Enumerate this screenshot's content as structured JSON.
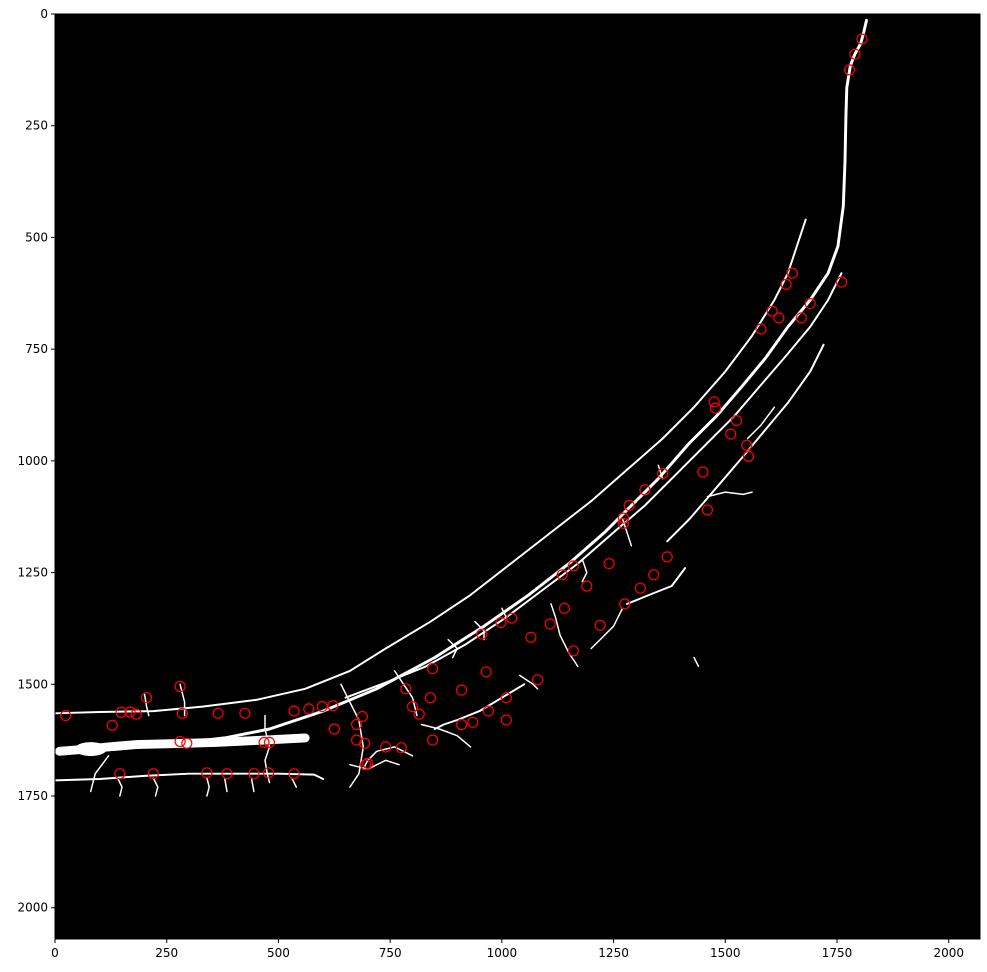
{
  "chart_data": {
    "type": "scatter",
    "title": "",
    "xlabel": "",
    "ylabel": "",
    "xlim": [
      0,
      2070
    ],
    "ylim": [
      2070,
      0
    ],
    "y_inverted": true,
    "grid": false,
    "background_color": "#000000",
    "mask_color": "#ffffff",
    "marker": "circle-outline",
    "marker_color": "#ff0000",
    "x_ticks": [
      0,
      250,
      500,
      750,
      1000,
      1250,
      1500,
      1750,
      2000
    ],
    "y_ticks": [
      0,
      250,
      500,
      750,
      1000,
      1250,
      1500,
      1750,
      2000
    ],
    "mask_strokes": [
      {
        "w": 3,
        "pts": [
          [
            1816,
            14
          ],
          [
            1810,
            40
          ],
          [
            1803,
            66
          ],
          [
            1790,
            90
          ],
          [
            1780,
            115
          ],
          [
            1772,
            165
          ],
          [
            1770,
            230
          ],
          [
            1768,
            330
          ],
          [
            1764,
            430
          ],
          [
            1752,
            520
          ],
          [
            1730,
            580
          ],
          [
            1690,
            640
          ],
          [
            1640,
            700
          ],
          [
            1590,
            770
          ],
          [
            1540,
            830
          ],
          [
            1480,
            900
          ],
          [
            1420,
            960
          ],
          [
            1350,
            1040
          ],
          [
            1290,
            1100
          ],
          [
            1230,
            1160
          ],
          [
            1150,
            1230
          ],
          [
            1060,
            1300
          ],
          [
            960,
            1370
          ],
          [
            850,
            1440
          ],
          [
            720,
            1510
          ],
          [
            600,
            1560
          ],
          [
            480,
            1600
          ],
          [
            380,
            1620
          ],
          [
            250,
            1635
          ],
          [
            140,
            1645
          ],
          [
            60,
            1650
          ],
          [
            0,
            1650
          ]
        ]
      },
      {
        "w": 2,
        "pts": [
          [
            1680,
            460
          ],
          [
            1660,
            520
          ],
          [
            1640,
            580
          ],
          [
            1610,
            640
          ],
          [
            1560,
            720
          ],
          [
            1500,
            800
          ],
          [
            1430,
            880
          ],
          [
            1360,
            950
          ],
          [
            1280,
            1020
          ],
          [
            1200,
            1090
          ],
          [
            1110,
            1160
          ],
          [
            1020,
            1230
          ],
          [
            930,
            1300
          ],
          [
            840,
            1360
          ],
          [
            740,
            1420
          ],
          [
            660,
            1470
          ],
          [
            560,
            1510
          ],
          [
            450,
            1535
          ],
          [
            330,
            1550
          ],
          [
            220,
            1560
          ],
          [
            100,
            1562
          ],
          [
            0,
            1565
          ]
        ]
      },
      {
        "w": 2,
        "pts": [
          [
            1760,
            580
          ],
          [
            1730,
            640
          ],
          [
            1690,
            700
          ],
          [
            1640,
            760
          ],
          [
            1580,
            830
          ],
          [
            1520,
            900
          ],
          [
            1460,
            960
          ],
          [
            1390,
            1030
          ],
          [
            1320,
            1100
          ],
          [
            1250,
            1160
          ],
          [
            1170,
            1230
          ],
          [
            1090,
            1290
          ],
          [
            1010,
            1350
          ],
          [
            920,
            1410
          ],
          [
            830,
            1460
          ],
          [
            730,
            1500
          ],
          [
            650,
            1530
          ]
        ]
      },
      {
        "w": 2,
        "pts": [
          [
            1720,
            740
          ],
          [
            1690,
            800
          ],
          [
            1640,
            870
          ],
          [
            1590,
            930
          ],
          [
            1540,
            990
          ],
          [
            1480,
            1060
          ],
          [
            1420,
            1130
          ],
          [
            1370,
            1180
          ]
        ]
      },
      {
        "w": 2,
        "pts": [
          [
            0,
            1715
          ],
          [
            100,
            1712
          ],
          [
            200,
            1705
          ],
          [
            300,
            1700
          ],
          [
            400,
            1700
          ],
          [
            500,
            1700
          ],
          [
            580,
            1702
          ],
          [
            600,
            1712
          ]
        ]
      },
      {
        "w": 9,
        "pts": [
          [
            10,
            1650
          ],
          [
            70,
            1645
          ],
          [
            120,
            1640
          ],
          [
            180,
            1635
          ],
          [
            260,
            1633
          ],
          [
            360,
            1630
          ],
          [
            470,
            1625
          ],
          [
            560,
            1620
          ]
        ]
      },
      {
        "w": 2,
        "pts": [
          [
            1280,
            1320
          ],
          [
            1330,
            1300
          ],
          [
            1380,
            1280
          ],
          [
            1410,
            1240
          ]
        ]
      },
      {
        "w": 2,
        "pts": [
          [
            1050,
            1500
          ],
          [
            1000,
            1530
          ],
          [
            950,
            1560
          ],
          [
            900,
            1580
          ],
          [
            870,
            1590
          ],
          [
            850,
            1600
          ]
        ]
      },
      {
        "w": 1.5,
        "pts": [
          [
            1270,
            1330
          ],
          [
            1250,
            1370
          ],
          [
            1220,
            1400
          ],
          [
            1200,
            1420
          ]
        ]
      },
      {
        "w": 1.5,
        "pts": [
          [
            1550,
            950
          ],
          [
            1580,
            920
          ],
          [
            1610,
            880
          ]
        ]
      },
      {
        "w": 1.5,
        "pts": [
          [
            1460,
            1080
          ],
          [
            1500,
            1070
          ],
          [
            1540,
            1075
          ],
          [
            1560,
            1070
          ]
        ]
      },
      {
        "w": 1.5,
        "pts": [
          [
            1110,
            1320
          ],
          [
            1120,
            1350
          ],
          [
            1130,
            1390
          ],
          [
            1150,
            1430
          ],
          [
            1170,
            1460
          ]
        ]
      },
      {
        "w": 1.5,
        "pts": [
          [
            820,
            1590
          ],
          [
            860,
            1600
          ],
          [
            900,
            1615
          ],
          [
            930,
            1640
          ]
        ]
      },
      {
        "w": 1.5,
        "pts": [
          [
            660,
            1680
          ],
          [
            700,
            1690
          ],
          [
            740,
            1670
          ],
          [
            770,
            1680
          ]
        ]
      },
      {
        "w": 1.5,
        "pts": [
          [
            690,
            1690
          ],
          [
            700,
            1670
          ],
          [
            720,
            1650
          ],
          [
            760,
            1640
          ],
          [
            800,
            1660
          ]
        ]
      },
      {
        "w": 1.5,
        "pts": [
          [
            760,
            1470
          ],
          [
            780,
            1500
          ],
          [
            800,
            1530
          ],
          [
            810,
            1570
          ]
        ]
      },
      {
        "w": 1.5,
        "pts": [
          [
            640,
            1500
          ],
          [
            660,
            1540
          ],
          [
            680,
            1580
          ],
          [
            690,
            1640
          ],
          [
            680,
            1700
          ],
          [
            660,
            1730
          ]
        ]
      },
      {
        "w": 1.5,
        "pts": [
          [
            280,
            1500
          ],
          [
            290,
            1540
          ],
          [
            290,
            1570
          ]
        ]
      },
      {
        "w": 1.5,
        "pts": [
          [
            200,
            1520
          ],
          [
            205,
            1550
          ],
          [
            210,
            1570
          ]
        ]
      },
      {
        "w": 1.5,
        "pts": [
          [
            470,
            1570
          ],
          [
            470,
            1600
          ],
          [
            480,
            1640
          ],
          [
            470,
            1670
          ],
          [
            475,
            1700
          ],
          [
            480,
            1720
          ]
        ]
      },
      {
        "w": 1.5,
        "pts": [
          [
            140,
            1710
          ],
          [
            150,
            1730
          ],
          [
            145,
            1750
          ]
        ]
      },
      {
        "w": 1.5,
        "pts": [
          [
            220,
            1710
          ],
          [
            230,
            1730
          ],
          [
            225,
            1750
          ]
        ]
      },
      {
        "w": 1.5,
        "pts": [
          [
            340,
            1710
          ],
          [
            345,
            1730
          ],
          [
            340,
            1750
          ]
        ]
      },
      {
        "w": 1.5,
        "pts": [
          [
            380,
            1712
          ],
          [
            385,
            1740
          ]
        ]
      },
      {
        "w": 1.5,
        "pts": [
          [
            440,
            1712
          ],
          [
            445,
            1740
          ]
        ]
      },
      {
        "w": 1.5,
        "pts": [
          [
            530,
            1710
          ],
          [
            540,
            1730
          ]
        ]
      },
      {
        "w": 1.5,
        "pts": [
          [
            1430,
            1440
          ],
          [
            1440,
            1460
          ]
        ]
      },
      {
        "w": 1.5,
        "pts": [
          [
            1040,
            1480
          ],
          [
            1070,
            1500
          ],
          [
            1080,
            1510
          ]
        ]
      },
      {
        "w": 1.5,
        "pts": [
          [
            940,
            1360
          ],
          [
            960,
            1380
          ],
          [
            960,
            1400
          ]
        ]
      },
      {
        "w": 1.5,
        "pts": [
          [
            1000,
            1330
          ],
          [
            1010,
            1350
          ]
        ]
      },
      {
        "w": 1.5,
        "pts": [
          [
            880,
            1400
          ],
          [
            900,
            1420
          ],
          [
            890,
            1440
          ]
        ]
      },
      {
        "w": 1.5,
        "pts": [
          [
            1270,
            1130
          ],
          [
            1280,
            1160
          ],
          [
            1290,
            1190
          ]
        ]
      },
      {
        "w": 1.5,
        "pts": [
          [
            1180,
            1220
          ],
          [
            1190,
            1250
          ],
          [
            1180,
            1270
          ]
        ]
      },
      {
        "w": 1.5,
        "pts": [
          [
            1350,
            1010
          ],
          [
            1360,
            1040
          ]
        ]
      },
      {
        "w": 1.5,
        "pts": [
          [
            120,
            1660
          ],
          [
            90,
            1700
          ],
          [
            80,
            1740
          ]
        ]
      }
    ],
    "points": [
      [
        1806,
        56
      ],
      [
        1790,
        90
      ],
      [
        1778,
        125
      ],
      [
        1650,
        580
      ],
      [
        1636,
        605
      ],
      [
        1605,
        665
      ],
      [
        1620,
        680
      ],
      [
        1580,
        705
      ],
      [
        1690,
        648
      ],
      [
        1670,
        680
      ],
      [
        1760,
        600
      ],
      [
        1475,
        868
      ],
      [
        1478,
        882
      ],
      [
        1525,
        910
      ],
      [
        1512,
        940
      ],
      [
        1548,
        965
      ],
      [
        1552,
        990
      ],
      [
        1450,
        1025
      ],
      [
        1460,
        1110
      ],
      [
        1360,
        1028
      ],
      [
        1320,
        1065
      ],
      [
        1285,
        1100
      ],
      [
        1272,
        1128
      ],
      [
        1272,
        1140
      ],
      [
        1135,
        1255
      ],
      [
        1160,
        1235
      ],
      [
        1240,
        1230
      ],
      [
        1190,
        1280
      ],
      [
        1370,
        1215
      ],
      [
        1340,
        1255
      ],
      [
        1310,
        1285
      ],
      [
        1275,
        1320
      ],
      [
        1140,
        1330
      ],
      [
        1108,
        1365
      ],
      [
        1065,
        1395
      ],
      [
        1220,
        1368
      ],
      [
        1160,
        1425
      ],
      [
        955,
        1388
      ],
      [
        998,
        1362
      ],
      [
        1022,
        1352
      ],
      [
        965,
        1472
      ],
      [
        970,
        1560
      ],
      [
        1010,
        1530
      ],
      [
        1010,
        1580
      ],
      [
        1080,
        1490
      ],
      [
        845,
        1465
      ],
      [
        910,
        1513
      ],
      [
        840,
        1530
      ],
      [
        800,
        1550
      ],
      [
        785,
        1510
      ],
      [
        815,
        1567
      ],
      [
        910,
        1590
      ],
      [
        935,
        1585
      ],
      [
        845,
        1625
      ],
      [
        688,
        1572
      ],
      [
        675,
        1590
      ],
      [
        675,
        1625
      ],
      [
        693,
        1632
      ],
      [
        695,
        1680
      ],
      [
        700,
        1677
      ],
      [
        740,
        1640
      ],
      [
        775,
        1642
      ],
      [
        622,
        1548
      ],
      [
        625,
        1600
      ],
      [
        598,
        1550
      ],
      [
        568,
        1555
      ],
      [
        535,
        1560
      ],
      [
        425,
        1565
      ],
      [
        365,
        1565
      ],
      [
        280,
        1505
      ],
      [
        285,
        1565
      ],
      [
        280,
        1628
      ],
      [
        295,
        1632
      ],
      [
        468,
        1630
      ],
      [
        480,
        1630
      ],
      [
        24,
        1570
      ],
      [
        128,
        1592
      ],
      [
        148,
        1563
      ],
      [
        168,
        1562
      ],
      [
        182,
        1567
      ],
      [
        205,
        1530
      ],
      [
        145,
        1700
      ],
      [
        220,
        1700
      ],
      [
        340,
        1698
      ],
      [
        385,
        1700
      ],
      [
        445,
        1700
      ],
      [
        478,
        1698
      ],
      [
        535,
        1700
      ]
    ]
  }
}
